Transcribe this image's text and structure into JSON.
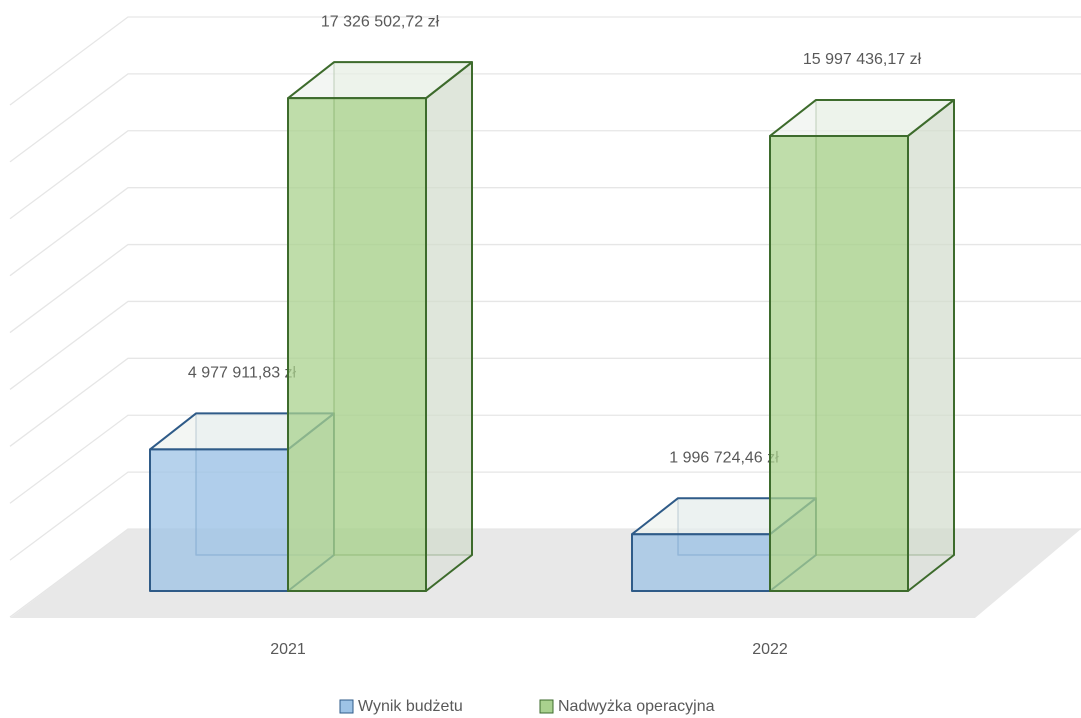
{
  "chart_data": {
    "type": "bar3d",
    "categories": [
      "2021",
      "2022"
    ],
    "series": [
      {
        "name": "Wynik budżetu",
        "color": "#9dc3e6",
        "values": [
          4977911.83,
          1996724.46
        ],
        "value_labels": [
          "4 977 911,83 zł",
          "1 996 724,46 zł"
        ]
      },
      {
        "name": "Nadwyżka operacyjna",
        "color": "#a9d18e",
        "values": [
          17326502.72,
          15997436.17
        ],
        "value_labels": [
          "17 326 502,72 zł",
          "15 997 436,17 zł"
        ]
      }
    ],
    "ylim": [
      0,
      18000000
    ],
    "yticks": [
      0,
      2000000,
      4000000,
      6000000,
      8000000,
      10000000,
      12000000,
      14000000,
      16000000,
      18000000
    ],
    "grid": true,
    "legend": "bottom"
  }
}
